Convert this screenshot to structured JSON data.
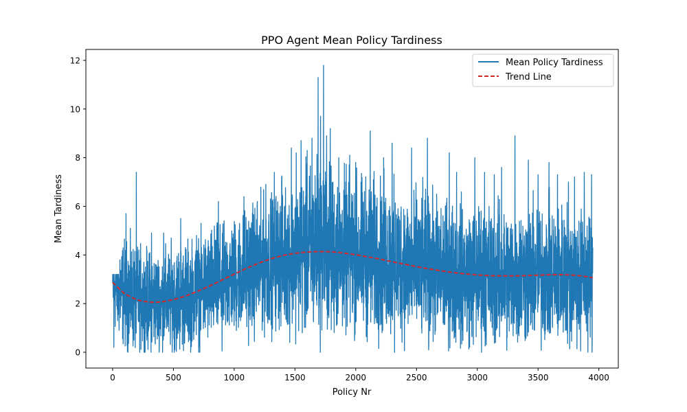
{
  "chart_data": {
    "type": "line",
    "title": "PPO Agent Mean Policy Tardiness",
    "xlabel": "Policy Nr",
    "ylabel": "Mean Tardiness",
    "xlim": [
      -220,
      4160
    ],
    "ylim": [
      -0.65,
      12.45
    ],
    "xticks": [
      0,
      500,
      1000,
      1500,
      2000,
      2500,
      3000,
      3500,
      4000
    ],
    "yticks": [
      0,
      2,
      4,
      6,
      8,
      10,
      12
    ],
    "grid": false,
    "legend_position": "upper-right",
    "colors": {
      "series": "#1f77b4",
      "trend": "#d62728"
    },
    "series": [
      {
        "name": "Mean Policy Tardiness",
        "style": "solid",
        "n_points": 3950,
        "x_start": 0,
        "x_end": 3950,
        "anchor_x": [
          0,
          100,
          200,
          300,
          400,
          500,
          600,
          700,
          800,
          900,
          1000,
          1100,
          1200,
          1300,
          1400,
          1500,
          1600,
          1700,
          1800,
          1900,
          2000,
          2100,
          2200,
          2300,
          2400,
          2500,
          2600,
          2700,
          2800,
          2900,
          3000,
          3100,
          3200,
          3300,
          3400,
          3500,
          3600,
          3700,
          3800,
          3900,
          3950
        ],
        "anchor_mean": [
          2.7,
          2.4,
          2.2,
          2.1,
          2.1,
          2.2,
          2.3,
          2.5,
          2.7,
          2.9,
          3.1,
          3.3,
          3.5,
          3.7,
          3.9,
          4.0,
          4.1,
          4.4,
          4.1,
          4.1,
          4.0,
          3.9,
          3.8,
          3.7,
          3.6,
          3.5,
          3.4,
          3.3,
          3.3,
          3.2,
          3.2,
          3.2,
          3.1,
          3.1,
          3.2,
          3.2,
          3.2,
          3.2,
          3.2,
          3.1,
          3.0
        ],
        "anchor_spread": [
          1.0,
          1.3,
          1.3,
          1.2,
          1.2,
          1.3,
          1.3,
          1.3,
          1.4,
          1.4,
          1.4,
          1.5,
          1.6,
          1.6,
          1.7,
          1.8,
          2.0,
          2.2,
          2.0,
          1.9,
          1.9,
          1.9,
          1.9,
          1.8,
          1.8,
          1.8,
          1.8,
          1.7,
          1.7,
          1.7,
          1.7,
          1.7,
          1.7,
          1.7,
          1.7,
          1.7,
          1.7,
          1.7,
          1.7,
          1.7,
          1.7
        ],
        "peaks": [
          {
            "x": 10,
            "y": 0.2
          },
          {
            "x": 60,
            "y": 3.8
          },
          {
            "x": 110,
            "y": 5.7
          },
          {
            "x": 195,
            "y": 7.4
          },
          {
            "x": 320,
            "y": 4.9
          },
          {
            "x": 420,
            "y": 4.9
          },
          {
            "x": 560,
            "y": 5.5
          },
          {
            "x": 690,
            "y": 4.8
          },
          {
            "x": 870,
            "y": 6.2
          },
          {
            "x": 900,
            "y": 0.05
          },
          {
            "x": 1080,
            "y": 6.4
          },
          {
            "x": 1190,
            "y": 6.2
          },
          {
            "x": 1260,
            "y": 6.9
          },
          {
            "x": 1330,
            "y": 7.4
          },
          {
            "x": 1390,
            "y": 7.2
          },
          {
            "x": 1470,
            "y": 8.4
          },
          {
            "x": 1510,
            "y": 8.2
          },
          {
            "x": 1550,
            "y": 8.7
          },
          {
            "x": 1600,
            "y": 8.3
          },
          {
            "x": 1640,
            "y": 8.8
          },
          {
            "x": 1690,
            "y": 11.3
          },
          {
            "x": 1710,
            "y": 9.7
          },
          {
            "x": 1735,
            "y": 11.8
          },
          {
            "x": 1760,
            "y": 8.9
          },
          {
            "x": 1790,
            "y": 9.2
          },
          {
            "x": 1860,
            "y": 8.0
          },
          {
            "x": 1950,
            "y": 8.1
          },
          {
            "x": 2000,
            "y": 7.8
          },
          {
            "x": 2120,
            "y": 9.1
          },
          {
            "x": 2230,
            "y": 8.0
          },
          {
            "x": 2300,
            "y": 8.6
          },
          {
            "x": 2320,
            "y": 0.0
          },
          {
            "x": 2460,
            "y": 8.4
          },
          {
            "x": 2590,
            "y": 8.8
          },
          {
            "x": 2600,
            "y": 0.1
          },
          {
            "x": 2770,
            "y": 8.2
          },
          {
            "x": 2830,
            "y": 7.4
          },
          {
            "x": 2980,
            "y": 8.0
          },
          {
            "x": 3060,
            "y": 7.4
          },
          {
            "x": 3140,
            "y": 7.3
          },
          {
            "x": 3200,
            "y": 7.6
          },
          {
            "x": 3310,
            "y": 8.9
          },
          {
            "x": 3420,
            "y": 7.9
          },
          {
            "x": 3500,
            "y": 7.3
          },
          {
            "x": 3590,
            "y": 7.8
          },
          {
            "x": 3660,
            "y": 7.3
          },
          {
            "x": 3750,
            "y": 7.0
          },
          {
            "x": 3800,
            "y": 7.2
          },
          {
            "x": 3880,
            "y": 7.4
          },
          {
            "x": 3940,
            "y": 7.3
          },
          {
            "x": 3850,
            "y": 0.05
          }
        ]
      },
      {
        "name": "Trend Line",
        "style": "dashed",
        "x": [
          0,
          100,
          200,
          300,
          350,
          400,
          500,
          600,
          700,
          800,
          900,
          1000,
          1100,
          1200,
          1300,
          1400,
          1500,
          1600,
          1700,
          1800,
          1900,
          2000,
          2100,
          2200,
          2300,
          2400,
          2500,
          2600,
          2700,
          2800,
          2900,
          3000,
          3100,
          3200,
          3300,
          3400,
          3500,
          3600,
          3700,
          3800,
          3900,
          3950
        ],
        "y": [
          2.87,
          2.4,
          2.15,
          2.06,
          2.05,
          2.07,
          2.16,
          2.31,
          2.51,
          2.73,
          2.97,
          3.21,
          3.45,
          3.66,
          3.84,
          3.98,
          4.07,
          4.12,
          4.14,
          4.13,
          4.08,
          4.01,
          3.92,
          3.83,
          3.72,
          3.62,
          3.52,
          3.43,
          3.35,
          3.28,
          3.22,
          3.18,
          3.15,
          3.14,
          3.14,
          3.15,
          3.17,
          3.19,
          3.19,
          3.17,
          3.11,
          3.06
        ]
      }
    ]
  }
}
